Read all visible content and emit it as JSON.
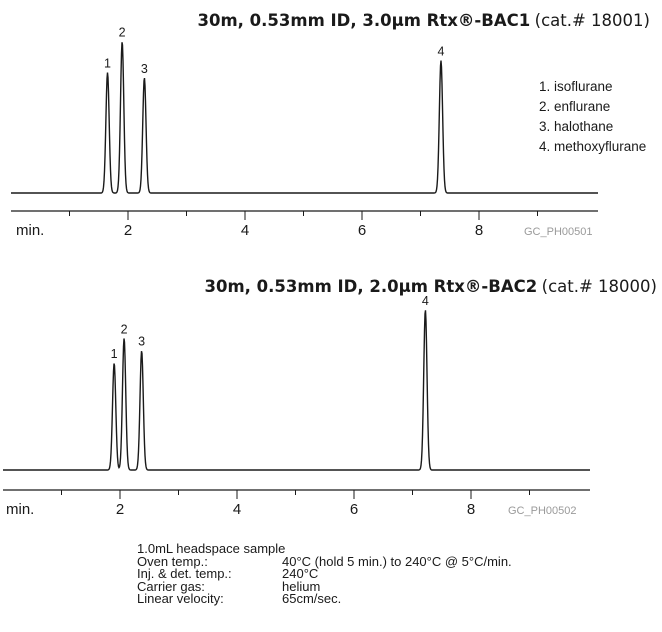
{
  "chart_data": [
    {
      "type": "line",
      "title": "30m, 0.53mm ID, 3.0µm Rtx®-BAC1",
      "title_suffix": "(cat.# 18001)",
      "xlabel": "min.",
      "xticks": [
        2,
        4,
        6,
        8
      ],
      "xlim": [
        0,
        8.5
      ],
      "code": "GC_PH00501",
      "legend": [
        "1. isoflurane",
        "2. enflurane",
        "3. halothane",
        "4. methoxyflurane"
      ],
      "peaks": [
        {
          "label": "1",
          "rt": 1.65,
          "height": 0.7
        },
        {
          "label": "2",
          "rt": 1.9,
          "height": 0.88
        },
        {
          "label": "3",
          "rt": 2.28,
          "height": 0.67
        },
        {
          "label": "4",
          "rt": 7.35,
          "height": 0.77
        }
      ]
    },
    {
      "type": "line",
      "title": "30m, 0.53mm ID, 2.0µm Rtx®-BAC2",
      "title_suffix": "(cat.# 18000)",
      "xlabel": "min.",
      "xticks": [
        2,
        4,
        6,
        8
      ],
      "xlim": [
        0,
        8.5
      ],
      "code": "GC_PH00502",
      "peaks": [
        {
          "label": "1",
          "rt": 1.9,
          "height": 0.6
        },
        {
          "label": "2",
          "rt": 2.07,
          "height": 0.74
        },
        {
          "label": "3",
          "rt": 2.37,
          "height": 0.67
        },
        {
          "label": "4",
          "rt": 7.22,
          "height": 0.9
        }
      ]
    }
  ],
  "conditions": {
    "sample": "1.0mL headspace sample",
    "rows": [
      {
        "label": "Oven temp.:",
        "value": "40°C (hold 5 min.) to 240°C @ 5°C/min."
      },
      {
        "label": "Inj. & det. temp.:",
        "value": "240°C"
      },
      {
        "label": "Carrier gas:",
        "value": "helium"
      },
      {
        "label": "Linear velocity:",
        "value": "65cm/sec."
      }
    ]
  }
}
